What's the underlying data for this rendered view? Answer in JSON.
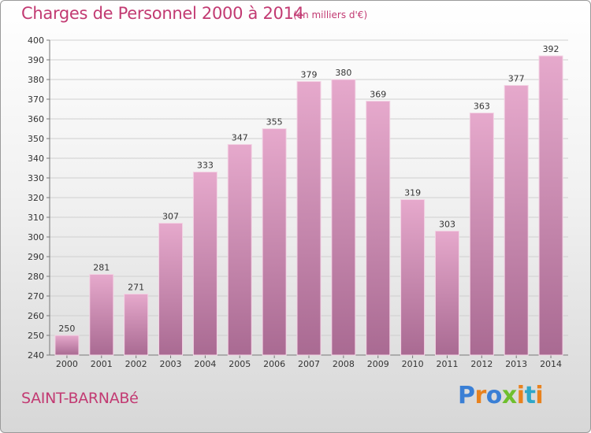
{
  "title": "Charges de Personnel 2000 à 2014",
  "subtitle": "(en milliers d'€)",
  "town": "SAINT-BARNABé",
  "logo": {
    "text": "Proxiti",
    "letter_colors": [
      "#3a7fd5",
      "#e8821e",
      "#3a7fd5",
      "#6fbf2e",
      "#e8821e",
      "#2fa7c9",
      "#e8821e"
    ]
  },
  "colors": {
    "title": "#c23a72",
    "bar_top": "#e6a9cc",
    "bar_bottom": "#a96a92"
  },
  "chart_data": {
    "type": "bar",
    "categories": [
      "2000",
      "2001",
      "2002",
      "2003",
      "2004",
      "2005",
      "2006",
      "2007",
      "2008",
      "2009",
      "2010",
      "2011",
      "2012",
      "2013",
      "2014"
    ],
    "values": [
      250,
      281,
      271,
      307,
      333,
      347,
      355,
      379,
      380,
      369,
      319,
      303,
      363,
      377,
      392
    ],
    "ylim": [
      240,
      400
    ],
    "ytick_step": 10,
    "grid": true
  }
}
